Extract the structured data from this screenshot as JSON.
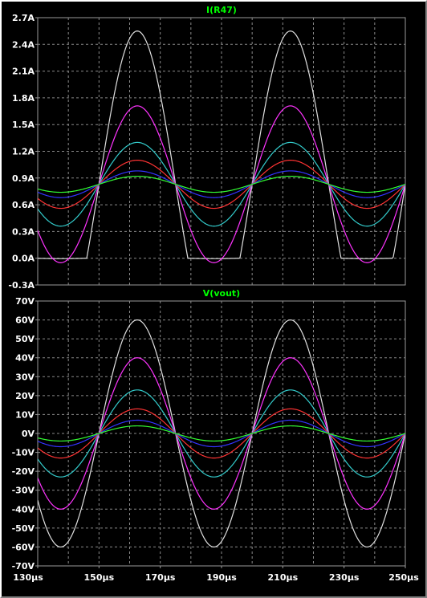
{
  "chart_data": [
    {
      "type": "line",
      "title": "I(R47)",
      "title_color": "#00ff00",
      "background": "#000000",
      "grid": true,
      "grid_style": "dashed",
      "x_range_us": [
        130,
        250
      ],
      "ylim": [
        -0.3,
        2.7
      ],
      "y_ticks": [
        "2.7A",
        "2.4A",
        "2.1A",
        "1.8A",
        "1.5A",
        "1.2A",
        "0.9A",
        "0.6A",
        "0.3A",
        "0.0A",
        "-0.3A"
      ],
      "y_tick_values": [
        2.7,
        2.4,
        2.1,
        1.8,
        1.5,
        1.2,
        0.9,
        0.6,
        0.3,
        0.0,
        -0.3
      ],
      "x_ticks_shown": false,
      "waveform": {
        "period_us": 50,
        "peak_at_us": 162.5,
        "crossing_level": 0.83,
        "clip_low": 0.0
      },
      "series": [
        {
          "color": "#e0e0e0",
          "amplitude": 1.72,
          "min_value": 0.0,
          "max_value": 2.55,
          "clipped": true
        },
        {
          "color": "#ff33ff",
          "amplitude": 0.88,
          "min_value": 0.04,
          "max_value": 1.71
        },
        {
          "color": "#33cccc",
          "amplitude": 0.47,
          "min_value": 0.36,
          "max_value": 1.3
        },
        {
          "color": "#ff3333",
          "amplitude": 0.27,
          "min_value": 0.56,
          "max_value": 1.1
        },
        {
          "color": "#3333ff",
          "amplitude": 0.15,
          "min_value": 0.68,
          "max_value": 0.98
        },
        {
          "color": "#33ff33",
          "amplitude": 0.09,
          "min_value": 0.74,
          "max_value": 0.92
        }
      ]
    },
    {
      "type": "line",
      "title": "V(vout)",
      "title_color": "#00ff00",
      "background": "#000000",
      "grid": true,
      "grid_style": "dashed",
      "x_range_us": [
        130,
        250
      ],
      "ylim": [
        -70,
        70
      ],
      "y_ticks": [
        "70V",
        "60V",
        "50V",
        "40V",
        "30V",
        "20V",
        "10V",
        "0V",
        "-10V",
        "-20V",
        "-30V",
        "-40V",
        "-50V",
        "-60V",
        "-70V"
      ],
      "y_tick_values": [
        70,
        60,
        50,
        40,
        30,
        20,
        10,
        0,
        -10,
        -20,
        -30,
        -40,
        -50,
        -60,
        -70
      ],
      "x_ticks": [
        "130µs",
        "150µs",
        "170µs",
        "190µs",
        "210µs",
        "230µs",
        "250µs"
      ],
      "x_tick_values": [
        130,
        150,
        170,
        190,
        210,
        230,
        250
      ],
      "waveform": {
        "period_us": 50,
        "peak_at_us": 162.5,
        "crossing_level": 0
      },
      "series": [
        {
          "color": "#e0e0e0",
          "amplitude": 60
        },
        {
          "color": "#ff33ff",
          "amplitude": 40
        },
        {
          "color": "#33cccc",
          "amplitude": 23
        },
        {
          "color": "#ff3333",
          "amplitude": 13
        },
        {
          "color": "#3333ff",
          "amplitude": 7
        },
        {
          "color": "#33ff33",
          "amplitude": 4
        }
      ]
    }
  ]
}
